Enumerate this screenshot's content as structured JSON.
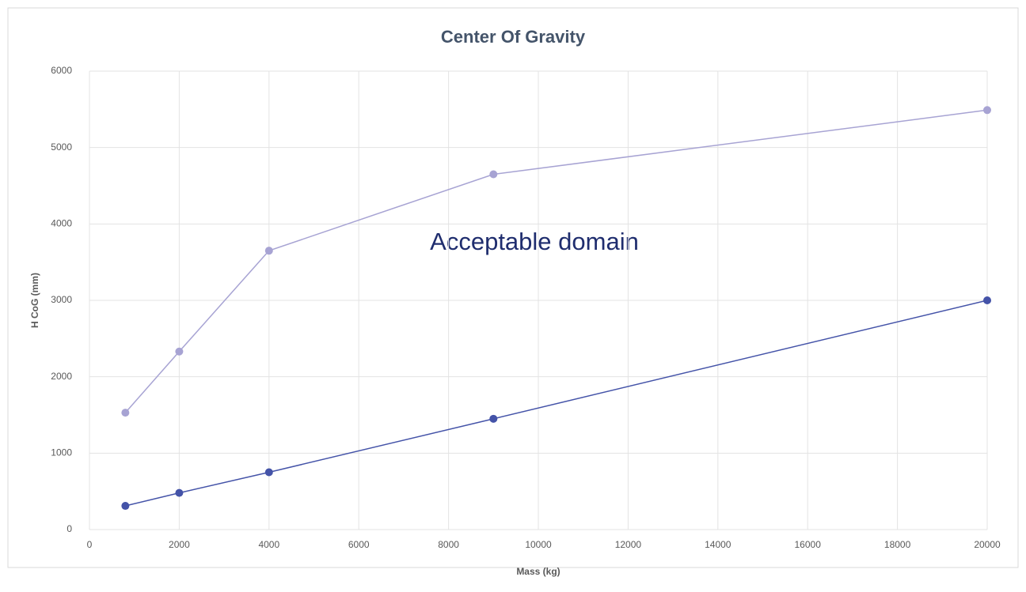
{
  "chart_data": {
    "type": "line",
    "title": "Center Of Gravity",
    "x_label": "Mass (kg)",
    "y_label": "H CoG (mm)",
    "annotation": "Acceptable domain",
    "x": [
      800,
      2000,
      4000,
      9000,
      20000
    ],
    "series": [
      {
        "color": "#a7a3d3",
        "values": [
          1530,
          2330,
          3650,
          4650,
          5490
        ]
      },
      {
        "color": "#4453a8",
        "values": [
          310,
          480,
          750,
          1450,
          3000
        ]
      }
    ],
    "xlim": [
      0,
      20000
    ],
    "xticks": [
      0,
      2000,
      4000,
      6000,
      8000,
      10000,
      12000,
      14000,
      16000,
      18000,
      20000
    ],
    "ylim": [
      0,
      6000
    ],
    "yticks": [
      0,
      1000,
      2000,
      3000,
      4000,
      5000,
      6000
    ],
    "grid": true
  }
}
